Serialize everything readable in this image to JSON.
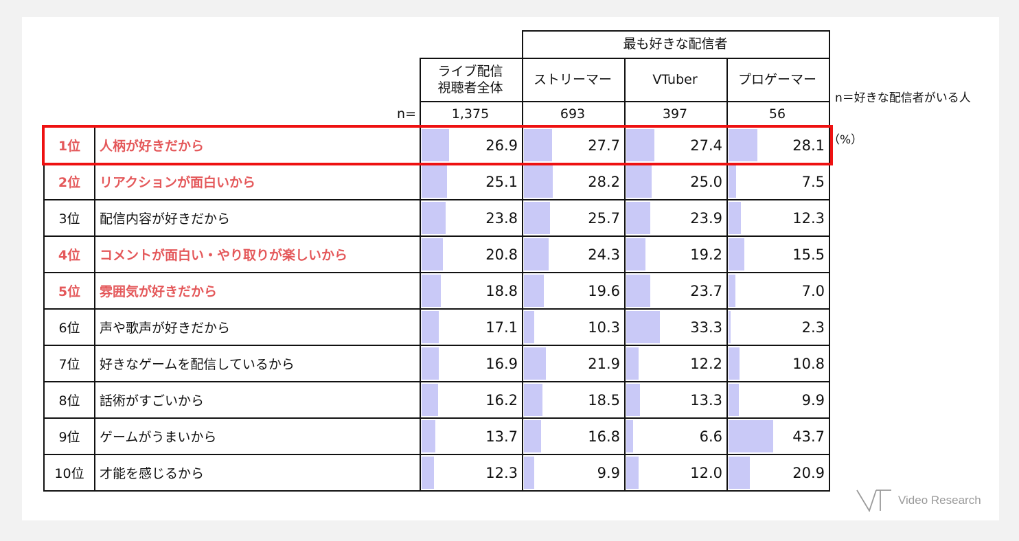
{
  "header": {
    "group_label": "最も好きな配信者",
    "all_label_line1": "ライブ配信",
    "all_label_line2": "視聴者全体",
    "n_label": "n=",
    "note_n": "n＝好きな配信者がいる人",
    "unit": "（%）"
  },
  "logo": {
    "text": "Video Research"
  },
  "colors": {
    "bar": "#c9c9f7",
    "highlight_text": "#e4585a",
    "highlight_box": "#ee1111"
  },
  "chart_data": {
    "type": "table",
    "columns": [
      {
        "name": "ライブ配信視聴者全体",
        "n": "1,375"
      },
      {
        "name": "ストリーマー",
        "n": "693"
      },
      {
        "name": "VTuber",
        "n": "397"
      },
      {
        "name": "プロゲーマー",
        "n": "56"
      }
    ],
    "rows": [
      {
        "rank": "1位",
        "label": "人柄が好きだから",
        "highlight": true,
        "boxed": true,
        "values": [
          26.9,
          27.7,
          27.4,
          28.1
        ]
      },
      {
        "rank": "2位",
        "label": "リアクションが面白いから",
        "highlight": true,
        "boxed": false,
        "values": [
          25.1,
          28.2,
          25.0,
          7.5
        ]
      },
      {
        "rank": "3位",
        "label": "配信内容が好きだから",
        "highlight": false,
        "boxed": false,
        "values": [
          23.8,
          25.7,
          23.9,
          12.3
        ]
      },
      {
        "rank": "4位",
        "label": "コメントが面白い・やり取りが楽しいから",
        "highlight": true,
        "boxed": false,
        "values": [
          20.8,
          24.3,
          19.2,
          15.5
        ]
      },
      {
        "rank": "5位",
        "label": "雰囲気が好きだから",
        "highlight": true,
        "boxed": false,
        "values": [
          18.8,
          19.6,
          23.7,
          7.0
        ]
      },
      {
        "rank": "6位",
        "label": "声や歌声が好きだから",
        "highlight": false,
        "boxed": false,
        "values": [
          17.1,
          10.3,
          33.3,
          2.3
        ]
      },
      {
        "rank": "7位",
        "label": "好きなゲームを配信しているから",
        "highlight": false,
        "boxed": false,
        "values": [
          16.9,
          21.9,
          12.2,
          10.8
        ]
      },
      {
        "rank": "8位",
        "label": "話術がすごいから",
        "highlight": false,
        "boxed": false,
        "values": [
          16.2,
          18.5,
          13.3,
          9.9
        ]
      },
      {
        "rank": "9位",
        "label": "ゲームがうまいから",
        "highlight": false,
        "boxed": false,
        "values": [
          13.7,
          16.8,
          6.6,
          43.7
        ]
      },
      {
        "rank": "10位",
        "label": "才能を感じるから",
        "highlight": false,
        "boxed": false,
        "values": [
          12.3,
          9.9,
          12.0,
          20.9
        ]
      }
    ],
    "bar_scale_max": 100,
    "grid": true
  }
}
